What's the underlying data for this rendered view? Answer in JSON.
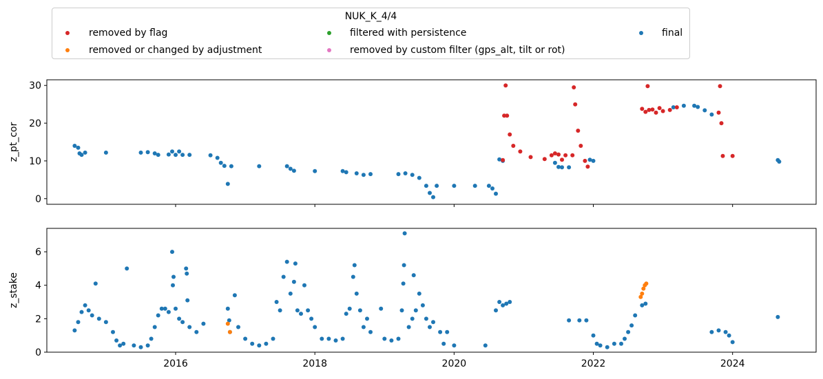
{
  "legend": {
    "title": "NUK_K_4/4",
    "items": [
      {
        "label": "removed by flag",
        "color": "#d62728"
      },
      {
        "label": "removed or changed by adjustment",
        "color": "#ff7f0e"
      },
      {
        "label": "filtered with persistence",
        "color": "#2ca02c"
      },
      {
        "label": "removed by custom filter (gps_alt, tilt or rot)",
        "color": "#e377c2"
      },
      {
        "label": "final",
        "color": "#1f77b4"
      }
    ]
  },
  "chart_data": [
    {
      "type": "scatter",
      "ylabel": "z_pt_cor",
      "xlim": [
        2014.15,
        2025.2
      ],
      "ylim": [
        -1.5,
        31.5
      ],
      "yticks": [
        0,
        10,
        20,
        30
      ],
      "xticks": [
        2016,
        2018,
        2020,
        2022,
        2024
      ],
      "show_xtick_labels": false,
      "series": [
        {
          "name": "final",
          "color": "#1f77b4",
          "points": [
            [
              2014.55,
              14.0
            ],
            [
              2014.6,
              13.5
            ],
            [
              2014.62,
              12.0
            ],
            [
              2014.65,
              11.6
            ],
            [
              2014.7,
              12.2
            ],
            [
              2015.0,
              12.2
            ],
            [
              2015.5,
              12.2
            ],
            [
              2015.6,
              12.3
            ],
            [
              2015.7,
              12.0
            ],
            [
              2015.75,
              11.6
            ],
            [
              2015.9,
              11.7
            ],
            [
              2015.95,
              12.5
            ],
            [
              2016.0,
              11.6
            ],
            [
              2016.05,
              12.5
            ],
            [
              2016.1,
              11.6
            ],
            [
              2016.2,
              11.6
            ],
            [
              2016.5,
              11.5
            ],
            [
              2016.6,
              10.8
            ],
            [
              2016.65,
              9.5
            ],
            [
              2016.7,
              8.7
            ],
            [
              2016.75,
              3.9
            ],
            [
              2016.8,
              8.6
            ],
            [
              2017.2,
              8.6
            ],
            [
              2017.6,
              8.6
            ],
            [
              2017.65,
              7.9
            ],
            [
              2017.7,
              7.4
            ],
            [
              2018.0,
              7.3
            ],
            [
              2018.4,
              7.3
            ],
            [
              2018.45,
              7.0
            ],
            [
              2018.6,
              6.7
            ],
            [
              2018.7,
              6.3
            ],
            [
              2018.8,
              6.5
            ],
            [
              2019.2,
              6.5
            ],
            [
              2019.3,
              6.7
            ],
            [
              2019.4,
              6.3
            ],
            [
              2019.5,
              5.5
            ],
            [
              2019.6,
              3.4
            ],
            [
              2019.65,
              1.5
            ],
            [
              2019.7,
              0.4
            ],
            [
              2019.75,
              3.4
            ],
            [
              2020.0,
              3.4
            ],
            [
              2020.3,
              3.4
            ],
            [
              2020.5,
              3.4
            ],
            [
              2020.55,
              2.7
            ],
            [
              2020.6,
              1.3
            ],
            [
              2020.65,
              10.4
            ],
            [
              2020.7,
              10.0
            ],
            [
              2021.45,
              9.5
            ],
            [
              2021.5,
              8.4
            ],
            [
              2021.55,
              8.3
            ],
            [
              2021.65,
              8.3
            ],
            [
              2021.95,
              10.3
            ],
            [
              2022.0,
              10.0
            ],
            [
              2023.15,
              24.2
            ],
            [
              2023.3,
              24.6
            ],
            [
              2023.45,
              24.6
            ],
            [
              2023.5,
              24.3
            ],
            [
              2023.6,
              23.4
            ],
            [
              2023.7,
              22.3
            ],
            [
              2024.65,
              10.2
            ],
            [
              2024.67,
              9.8
            ]
          ]
        },
        {
          "name": "removed by flag",
          "color": "#d62728",
          "points": [
            [
              2020.7,
              10.2
            ],
            [
              2020.72,
              22.0
            ],
            [
              2020.74,
              30.0
            ],
            [
              2020.76,
              22.0
            ],
            [
              2020.8,
              17.0
            ],
            [
              2020.85,
              14.0
            ],
            [
              2020.95,
              12.5
            ],
            [
              2021.1,
              11.0
            ],
            [
              2021.3,
              10.5
            ],
            [
              2021.4,
              11.5
            ],
            [
              2021.45,
              12.0
            ],
            [
              2021.5,
              11.7
            ],
            [
              2021.55,
              10.3
            ],
            [
              2021.6,
              11.5
            ],
            [
              2021.7,
              11.5
            ],
            [
              2021.72,
              29.5
            ],
            [
              2021.74,
              25.0
            ],
            [
              2021.78,
              18.0
            ],
            [
              2021.82,
              14.0
            ],
            [
              2021.88,
              10.0
            ],
            [
              2021.92,
              8.5
            ],
            [
              2022.7,
              23.8
            ],
            [
              2022.75,
              23.0
            ],
            [
              2022.78,
              29.8
            ],
            [
              2022.8,
              23.5
            ],
            [
              2022.85,
              23.6
            ],
            [
              2022.9,
              22.8
            ],
            [
              2022.95,
              24.0
            ],
            [
              2023.0,
              23.2
            ],
            [
              2023.1,
              23.5
            ],
            [
              2023.2,
              24.2
            ],
            [
              2023.8,
              22.8
            ],
            [
              2023.82,
              29.8
            ],
            [
              2023.84,
              20.0
            ],
            [
              2023.86,
              11.3
            ],
            [
              2024.0,
              11.3
            ]
          ]
        },
        {
          "name": "removed or changed by adjustment",
          "color": "#ff7f0e",
          "points": []
        },
        {
          "name": "filtered with persistence",
          "color": "#2ca02c",
          "points": []
        },
        {
          "name": "removed by custom filter (gps_alt, tilt or rot)",
          "color": "#e377c2",
          "points": []
        }
      ]
    },
    {
      "type": "scatter",
      "ylabel": "z_stake",
      "xlim": [
        2014.15,
        2025.2
      ],
      "ylim": [
        0,
        7.4
      ],
      "yticks": [
        0,
        2,
        4,
        6
      ],
      "xticks": [
        2016,
        2018,
        2020,
        2022,
        2024
      ],
      "xtick_labels": [
        "2016",
        "2018",
        "2020",
        "2022",
        "2024"
      ],
      "series": [
        {
          "name": "final",
          "color": "#1f77b4",
          "points": [
            [
              2014.55,
              1.3
            ],
            [
              2014.6,
              1.8
            ],
            [
              2014.65,
              2.4
            ],
            [
              2014.7,
              2.8
            ],
            [
              2014.75,
              2.5
            ],
            [
              2014.8,
              2.2
            ],
            [
              2014.85,
              4.1
            ],
            [
              2014.9,
              2.0
            ],
            [
              2015.0,
              1.8
            ],
            [
              2015.1,
              1.2
            ],
            [
              2015.15,
              0.7
            ],
            [
              2015.2,
              0.4
            ],
            [
              2015.25,
              0.5
            ],
            [
              2015.3,
              5.0
            ],
            [
              2015.4,
              0.4
            ],
            [
              2015.5,
              0.3
            ],
            [
              2015.6,
              0.4
            ],
            [
              2015.65,
              0.8
            ],
            [
              2015.7,
              1.5
            ],
            [
              2015.75,
              2.2
            ],
            [
              2015.8,
              2.6
            ],
            [
              2015.85,
              2.6
            ],
            [
              2015.9,
              2.4
            ],
            [
              2015.95,
              6.0
            ],
            [
              2015.96,
              4.0
            ],
            [
              2015.97,
              4.5
            ],
            [
              2016.0,
              2.6
            ],
            [
              2016.05,
              2.0
            ],
            [
              2016.1,
              1.8
            ],
            [
              2016.15,
              5.0
            ],
            [
              2016.16,
              4.7
            ],
            [
              2016.17,
              3.1
            ],
            [
              2016.2,
              1.5
            ],
            [
              2016.3,
              1.2
            ],
            [
              2016.4,
              1.7
            ],
            [
              2016.75,
              2.6
            ],
            [
              2016.77,
              1.9
            ],
            [
              2016.78,
              1.2
            ],
            [
              2016.85,
              3.4
            ],
            [
              2016.9,
              1.5
            ],
            [
              2017.0,
              0.8
            ],
            [
              2017.1,
              0.5
            ],
            [
              2017.2,
              0.4
            ],
            [
              2017.3,
              0.5
            ],
            [
              2017.4,
              0.8
            ],
            [
              2017.45,
              3.0
            ],
            [
              2017.5,
              2.5
            ],
            [
              2017.55,
              4.5
            ],
            [
              2017.6,
              5.4
            ],
            [
              2017.65,
              3.5
            ],
            [
              2017.7,
              4.2
            ],
            [
              2017.72,
              5.3
            ],
            [
              2017.75,
              2.5
            ],
            [
              2017.8,
              2.3
            ],
            [
              2017.85,
              4.0
            ],
            [
              2017.9,
              2.5
            ],
            [
              2017.95,
              2.0
            ],
            [
              2018.0,
              1.5
            ],
            [
              2018.1,
              0.8
            ],
            [
              2018.2,
              0.8
            ],
            [
              2018.3,
              0.7
            ],
            [
              2018.4,
              0.8
            ],
            [
              2018.45,
              2.3
            ],
            [
              2018.5,
              2.6
            ],
            [
              2018.55,
              4.5
            ],
            [
              2018.57,
              5.2
            ],
            [
              2018.6,
              3.5
            ],
            [
              2018.65,
              2.5
            ],
            [
              2018.7,
              1.5
            ],
            [
              2018.75,
              2.0
            ],
            [
              2018.8,
              1.2
            ],
            [
              2018.95,
              2.6
            ],
            [
              2019.0,
              0.8
            ],
            [
              2019.1,
              0.7
            ],
            [
              2019.2,
              0.8
            ],
            [
              2019.25,
              2.5
            ],
            [
              2019.27,
              4.1
            ],
            [
              2019.28,
              5.2
            ],
            [
              2019.29,
              7.1
            ],
            [
              2019.35,
              1.5
            ],
            [
              2019.4,
              2.0
            ],
            [
              2019.42,
              4.6
            ],
            [
              2019.45,
              2.5
            ],
            [
              2019.5,
              3.5
            ],
            [
              2019.55,
              2.8
            ],
            [
              2019.6,
              2.0
            ],
            [
              2019.65,
              1.5
            ],
            [
              2019.7,
              1.8
            ],
            [
              2019.8,
              1.2
            ],
            [
              2019.85,
              0.5
            ],
            [
              2019.9,
              1.2
            ],
            [
              2020.0,
              0.4
            ],
            [
              2020.45,
              0.4
            ],
            [
              2020.6,
              2.5
            ],
            [
              2020.65,
              3.0
            ],
            [
              2020.7,
              2.8
            ],
            [
              2020.75,
              2.9
            ],
            [
              2020.8,
              3.0
            ],
            [
              2021.65,
              1.9
            ],
            [
              2021.8,
              1.9
            ],
            [
              2021.9,
              1.9
            ],
            [
              2022.0,
              1.0
            ],
            [
              2022.05,
              0.5
            ],
            [
              2022.1,
              0.4
            ],
            [
              2022.2,
              0.3
            ],
            [
              2022.3,
              0.5
            ],
            [
              2022.4,
              0.5
            ],
            [
              2022.45,
              0.8
            ],
            [
              2022.5,
              1.2
            ],
            [
              2022.55,
              1.6
            ],
            [
              2022.6,
              2.2
            ],
            [
              2022.7,
              2.8
            ],
            [
              2022.75,
              2.9
            ],
            [
              2023.7,
              1.2
            ],
            [
              2023.8,
              1.3
            ],
            [
              2023.9,
              1.2
            ],
            [
              2023.95,
              1.0
            ],
            [
              2024.0,
              0.6
            ],
            [
              2024.65,
              2.1
            ]
          ]
        },
        {
          "name": "removed or changed by adjustment",
          "color": "#ff7f0e",
          "points": [
            [
              2016.75,
              1.7
            ],
            [
              2016.78,
              1.2
            ],
            [
              2022.68,
              3.3
            ],
            [
              2022.7,
              3.5
            ],
            [
              2022.72,
              3.8
            ],
            [
              2022.74,
              4.0
            ],
            [
              2022.76,
              4.1
            ]
          ]
        },
        {
          "name": "removed by flag",
          "color": "#d62728",
          "points": []
        },
        {
          "name": "filtered with persistence",
          "color": "#2ca02c",
          "points": []
        },
        {
          "name": "removed by custom filter (gps_alt, tilt or rot)",
          "color": "#e377c2",
          "points": []
        }
      ]
    }
  ]
}
